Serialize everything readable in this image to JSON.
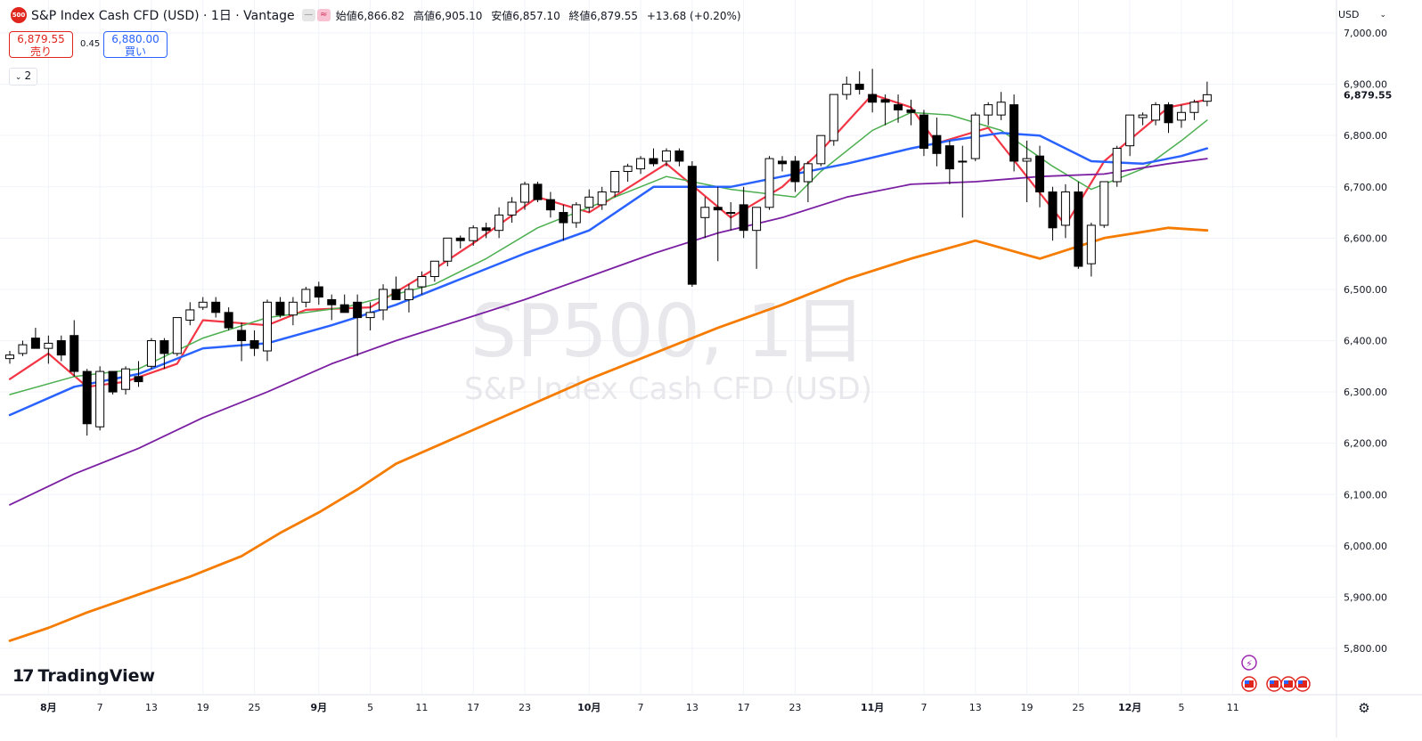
{
  "header": {
    "symbol_badge": "500",
    "title": "S&P Index Cash CFD (USD) · 1日 · Vantage",
    "ohlc": {
      "open_label": "始値",
      "open": "6,866.82",
      "high_label": "高値",
      "high": "6,905.10",
      "low_label": "安値",
      "low": "6,857.10",
      "close_label": "終値",
      "close": "6,879.55",
      "change": "+13.68 (+0.20%)"
    }
  },
  "quote": {
    "sell_price": "6,879.55",
    "sell_label": "売り",
    "spread": "0.45",
    "buy_price": "6,880.00",
    "buy_label": "買い"
  },
  "indicators_toggle": {
    "count": "2"
  },
  "currency_selector": "USD",
  "branding": {
    "name": "TradingView"
  },
  "watermark": {
    "line1": "SP500, 1日",
    "line2": "S&P Index Cash CFD (USD)"
  },
  "colors": {
    "up_candle": "#ffffff",
    "down_candle": "#000000",
    "wick": "#000000",
    "ma_red": "#f23645",
    "ma_green": "#4caf50",
    "ma_blue": "#2962ff",
    "ma_purple": "#7b1fa2",
    "ma_orange": "#f57c00",
    "price_label": "#131722"
  },
  "chart_data": {
    "type": "candlestick",
    "ylim": [
      5730,
      7040
    ],
    "y_ticks": [
      {
        "v": 7000,
        "label": "7,000.00"
      },
      {
        "v": 6900,
        "label": "6,900.00"
      },
      {
        "v": 6800,
        "label": "6,800.00"
      },
      {
        "v": 6700,
        "label": "6,700.00"
      },
      {
        "v": 6600,
        "label": "6,600.00"
      },
      {
        "v": 6500,
        "label": "6,500.00"
      },
      {
        "v": 6400,
        "label": "6,400.00"
      },
      {
        "v": 6300,
        "label": "6,300.00"
      },
      {
        "v": 6200,
        "label": "6,200.00"
      },
      {
        "v": 6100,
        "label": "6,100.00"
      },
      {
        "v": 6000,
        "label": "6,000.00"
      },
      {
        "v": 5900,
        "label": "5,900.00"
      },
      {
        "v": 5800,
        "label": "5,800.00"
      }
    ],
    "last_price": {
      "v": 6879.55,
      "label": "6,879.55"
    },
    "x_ticks": [
      {
        "i": 3,
        "label": "8月",
        "bold": true
      },
      {
        "i": 7,
        "label": "7"
      },
      {
        "i": 11,
        "label": "13"
      },
      {
        "i": 15,
        "label": "19"
      },
      {
        "i": 19,
        "label": "25"
      },
      {
        "i": 24,
        "label": "9月",
        "bold": true
      },
      {
        "i": 28,
        "label": "5"
      },
      {
        "i": 32,
        "label": "11"
      },
      {
        "i": 36,
        "label": "17"
      },
      {
        "i": 40,
        "label": "23"
      },
      {
        "i": 45,
        "label": "10月",
        "bold": true
      },
      {
        "i": 49,
        "label": "7"
      },
      {
        "i": 53,
        "label": "13"
      },
      {
        "i": 57,
        "label": "17"
      },
      {
        "i": 61,
        "label": "23"
      },
      {
        "i": 67,
        "label": "11月",
        "bold": true
      },
      {
        "i": 71,
        "label": "7"
      },
      {
        "i": 75,
        "label": "13"
      },
      {
        "i": 79,
        "label": "19"
      },
      {
        "i": 83,
        "label": "25"
      },
      {
        "i": 87,
        "label": "12月",
        "bold": true
      },
      {
        "i": 91,
        "label": "5"
      },
      {
        "i": 95,
        "label": "11"
      }
    ],
    "candles": [
      [
        6365,
        6380,
        6355,
        6372
      ],
      [
        6375,
        6400,
        6370,
        6392
      ],
      [
        6405,
        6425,
        6390,
        6385
      ],
      [
        6385,
        6410,
        6355,
        6395
      ],
      [
        6400,
        6410,
        6360,
        6372
      ],
      [
        6410,
        6440,
        6330,
        6340
      ],
      [
        6340,
        6345,
        6215,
        6238
      ],
      [
        6232,
        6350,
        6225,
        6340
      ],
      [
        6340,
        6340,
        6295,
        6300
      ],
      [
        6305,
        6350,
        6295,
        6345
      ],
      [
        6330,
        6360,
        6310,
        6320
      ],
      [
        6350,
        6405,
        6345,
        6400
      ],
      [
        6400,
        6405,
        6345,
        6375
      ],
      [
        6375,
        6445,
        6370,
        6445
      ],
      [
        6440,
        6475,
        6430,
        6460
      ],
      [
        6465,
        6485,
        6460,
        6475
      ],
      [
        6475,
        6485,
        6445,
        6455
      ],
      [
        6455,
        6465,
        6420,
        6425
      ],
      [
        6420,
        6435,
        6360,
        6400
      ],
      [
        6400,
        6420,
        6370,
        6385
      ],
      [
        6380,
        6480,
        6360,
        6475
      ],
      [
        6475,
        6485,
        6445,
        6450
      ],
      [
        6450,
        6485,
        6430,
        6475
      ],
      [
        6475,
        6505,
        6465,
        6500
      ],
      [
        6505,
        6515,
        6470,
        6485
      ],
      [
        6480,
        6490,
        6440,
        6470
      ],
      [
        6470,
        6490,
        6455,
        6455
      ],
      [
        6475,
        6490,
        6370,
        6445
      ],
      [
        6445,
        6475,
        6420,
        6455
      ],
      [
        6460,
        6510,
        6440,
        6500
      ],
      [
        6500,
        6525,
        6480,
        6480
      ],
      [
        6480,
        6510,
        6455,
        6500
      ],
      [
        6505,
        6535,
        6490,
        6525
      ],
      [
        6525,
        6555,
        6515,
        6555
      ],
      [
        6555,
        6600,
        6545,
        6600
      ],
      [
        6600,
        6605,
        6580,
        6595
      ],
      [
        6595,
        6625,
        6585,
        6620
      ],
      [
        6620,
        6630,
        6600,
        6615
      ],
      [
        6615,
        6660,
        6600,
        6645
      ],
      [
        6645,
        6680,
        6630,
        6670
      ],
      [
        6670,
        6710,
        6655,
        6705
      ],
      [
        6705,
        6710,
        6670,
        6675
      ],
      [
        6675,
        6690,
        6640,
        6655
      ],
      [
        6650,
        6665,
        6595,
        6630
      ],
      [
        6630,
        6670,
        6620,
        6665
      ],
      [
        6660,
        6695,
        6650,
        6680
      ],
      [
        6665,
        6700,
        6655,
        6690
      ],
      [
        6690,
        6730,
        6680,
        6730
      ],
      [
        6730,
        6745,
        6710,
        6740
      ],
      [
        6735,
        6760,
        6725,
        6755
      ],
      [
        6755,
        6775,
        6740,
        6745
      ],
      [
        6750,
        6775,
        6740,
        6770
      ],
      [
        6770,
        6775,
        6740,
        6750
      ],
      [
        6740,
        6750,
        6505,
        6510
      ],
      [
        6640,
        6680,
        6600,
        6660
      ],
      [
        6660,
        6700,
        6555,
        6655
      ],
      [
        6650,
        6670,
        6615,
        6650
      ],
      [
        6665,
        6700,
        6600,
        6615
      ],
      [
        6615,
        6660,
        6540,
        6660
      ],
      [
        6660,
        6760,
        6655,
        6755
      ],
      [
        6750,
        6760,
        6730,
        6745
      ],
      [
        6750,
        6760,
        6690,
        6710
      ],
      [
        6710,
        6750,
        6670,
        6745
      ],
      [
        6745,
        6800,
        6740,
        6800
      ],
      [
        6790,
        6880,
        6780,
        6880
      ],
      [
        6880,
        6915,
        6870,
        6900
      ],
      [
        6900,
        6925,
        6880,
        6890
      ],
      [
        6880,
        6930,
        6845,
        6865
      ],
      [
        6870,
        6880,
        6820,
        6865
      ],
      [
        6860,
        6880,
        6825,
        6850
      ],
      [
        6850,
        6870,
        6820,
        6845
      ],
      [
        6840,
        6850,
        6760,
        6775
      ],
      [
        6800,
        6835,
        6740,
        6765
      ],
      [
        6780,
        6790,
        6705,
        6735
      ],
      [
        6750,
        6780,
        6640,
        6750
      ],
      [
        6755,
        6845,
        6750,
        6840
      ],
      [
        6840,
        6865,
        6820,
        6860
      ],
      [
        6840,
        6885,
        6830,
        6865
      ],
      [
        6860,
        6880,
        6730,
        6750
      ],
      [
        6750,
        6790,
        6670,
        6755
      ],
      [
        6760,
        6780,
        6660,
        6690
      ],
      [
        6690,
        6700,
        6595,
        6620
      ],
      [
        6625,
        6705,
        6600,
        6690
      ],
      [
        6690,
        6710,
        6540,
        6545
      ],
      [
        6550,
        6630,
        6525,
        6625
      ],
      [
        6625,
        6710,
        6620,
        6710
      ],
      [
        6710,
        6780,
        6700,
        6775
      ],
      [
        6780,
        6840,
        6760,
        6840
      ],
      [
        6835,
        6845,
        6820,
        6840
      ],
      [
        6830,
        6865,
        6820,
        6860
      ],
      [
        6860,
        6865,
        6805,
        6825
      ],
      [
        6830,
        6860,
        6815,
        6845
      ],
      [
        6845,
        6870,
        6830,
        6865
      ],
      [
        6866.82,
        6905.1,
        6857.1,
        6879.55
      ]
    ],
    "series": [
      {
        "color_key": "ma_red",
        "width": 2.2,
        "values": [
          [
            0,
            6325
          ],
          [
            3,
            6375
          ],
          [
            6,
            6310
          ],
          [
            9,
            6320
          ],
          [
            13,
            6355
          ],
          [
            15,
            6440
          ],
          [
            20,
            6430
          ],
          [
            23,
            6460
          ],
          [
            28,
            6465
          ],
          [
            33,
            6540
          ],
          [
            36,
            6590
          ],
          [
            41,
            6680
          ],
          [
            45,
            6650
          ],
          [
            51,
            6745
          ],
          [
            56,
            6640
          ],
          [
            60,
            6700
          ],
          [
            63,
            6770
          ],
          [
            67,
            6880
          ],
          [
            70,
            6855
          ],
          [
            72,
            6785
          ],
          [
            76,
            6815
          ],
          [
            79,
            6720
          ],
          [
            82,
            6625
          ],
          [
            85,
            6750
          ],
          [
            90,
            6855
          ],
          [
            93,
            6870
          ]
        ]
      },
      {
        "color_key": "ma_green",
        "width": 1.5,
        "values": [
          [
            0,
            6295
          ],
          [
            5,
            6330
          ],
          [
            10,
            6345
          ],
          [
            15,
            6405
          ],
          [
            20,
            6445
          ],
          [
            26,
            6465
          ],
          [
            33,
            6510
          ],
          [
            37,
            6560
          ],
          [
            41,
            6620
          ],
          [
            45,
            6660
          ],
          [
            51,
            6720
          ],
          [
            56,
            6695
          ],
          [
            61,
            6680
          ],
          [
            63,
            6730
          ],
          [
            67,
            6810
          ],
          [
            70,
            6845
          ],
          [
            73,
            6840
          ],
          [
            77,
            6810
          ],
          [
            81,
            6740
          ],
          [
            84,
            6695
          ],
          [
            88,
            6735
          ],
          [
            91,
            6790
          ],
          [
            93,
            6830
          ]
        ]
      },
      {
        "color_key": "ma_blue",
        "width": 2.5,
        "values": [
          [
            0,
            6255
          ],
          [
            5,
            6310
          ],
          [
            10,
            6335
          ],
          [
            15,
            6385
          ],
          [
            20,
            6395
          ],
          [
            25,
            6430
          ],
          [
            30,
            6470
          ],
          [
            35,
            6520
          ],
          [
            40,
            6570
          ],
          [
            45,
            6615
          ],
          [
            50,
            6700
          ],
          [
            56,
            6700
          ],
          [
            60,
            6720
          ],
          [
            65,
            6745
          ],
          [
            70,
            6775
          ],
          [
            73,
            6790
          ],
          [
            77,
            6805
          ],
          [
            80,
            6800
          ],
          [
            84,
            6750
          ],
          [
            88,
            6745
          ],
          [
            91,
            6760
          ],
          [
            93,
            6775
          ]
        ]
      },
      {
        "color_key": "ma_purple",
        "width": 1.8,
        "values": [
          [
            0,
            6080
          ],
          [
            5,
            6140
          ],
          [
            10,
            6190
          ],
          [
            15,
            6250
          ],
          [
            20,
            6300
          ],
          [
            25,
            6355
          ],
          [
            30,
            6400
          ],
          [
            35,
            6440
          ],
          [
            40,
            6480
          ],
          [
            45,
            6525
          ],
          [
            50,
            6570
          ],
          [
            55,
            6610
          ],
          [
            60,
            6640
          ],
          [
            65,
            6680
          ],
          [
            70,
            6705
          ],
          [
            75,
            6710
          ],
          [
            80,
            6720
          ],
          [
            85,
            6725
          ],
          [
            90,
            6745
          ],
          [
            93,
            6755
          ]
        ]
      },
      {
        "color_key": "ma_orange",
        "width": 2.8,
        "values": [
          [
            0,
            5815
          ],
          [
            3,
            5840
          ],
          [
            6,
            5870
          ],
          [
            10,
            5905
          ],
          [
            14,
            5940
          ],
          [
            18,
            5980
          ],
          [
            21,
            6025
          ],
          [
            24,
            6065
          ],
          [
            27,
            6110
          ],
          [
            30,
            6160
          ],
          [
            35,
            6215
          ],
          [
            40,
            6270
          ],
          [
            45,
            6325
          ],
          [
            50,
            6375
          ],
          [
            55,
            6425
          ],
          [
            60,
            6470
          ],
          [
            65,
            6520
          ],
          [
            70,
            6560
          ],
          [
            75,
            6595
          ],
          [
            80,
            6560
          ],
          [
            85,
            6600
          ],
          [
            90,
            6620
          ],
          [
            93,
            6615
          ]
        ]
      }
    ]
  }
}
